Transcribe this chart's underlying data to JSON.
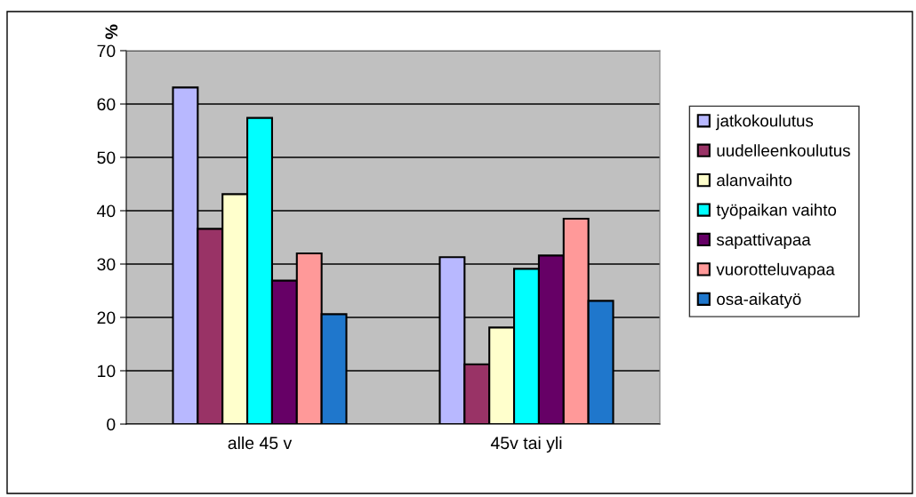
{
  "chart_data": {
    "type": "bar",
    "ylabel": "%",
    "categories": [
      "alle 45 v",
      "45v tai yli"
    ],
    "series": [
      {
        "name": "jatkokoulutus",
        "color": "#b8b8ff",
        "values": [
          63.1,
          31.3
        ]
      },
      {
        "name": "uudelleenkoulutus",
        "color": "#993366",
        "values": [
          36.6,
          11.2
        ]
      },
      {
        "name": "alanvaihto",
        "color": "#ffffcc",
        "values": [
          43.1,
          18.1
        ]
      },
      {
        "name": "työpaikan vaihto",
        "color": "#00ffff",
        "values": [
          57.4,
          29.1
        ]
      },
      {
        "name": "sapattivapaa",
        "color": "#660066",
        "values": [
          26.9,
          31.6
        ]
      },
      {
        "name": "vuorotteluvapaa",
        "color": "#ff9999",
        "values": [
          32.0,
          38.5
        ]
      },
      {
        "name": "osa-aikatyö",
        "color": "#1f77cc",
        "values": [
          20.6,
          23.1
        ]
      }
    ],
    "ylim": [
      0,
      70
    ],
    "yticks": [
      0,
      10,
      20,
      30,
      40,
      50,
      60,
      70
    ],
    "grid": "y",
    "legend": "right"
  }
}
